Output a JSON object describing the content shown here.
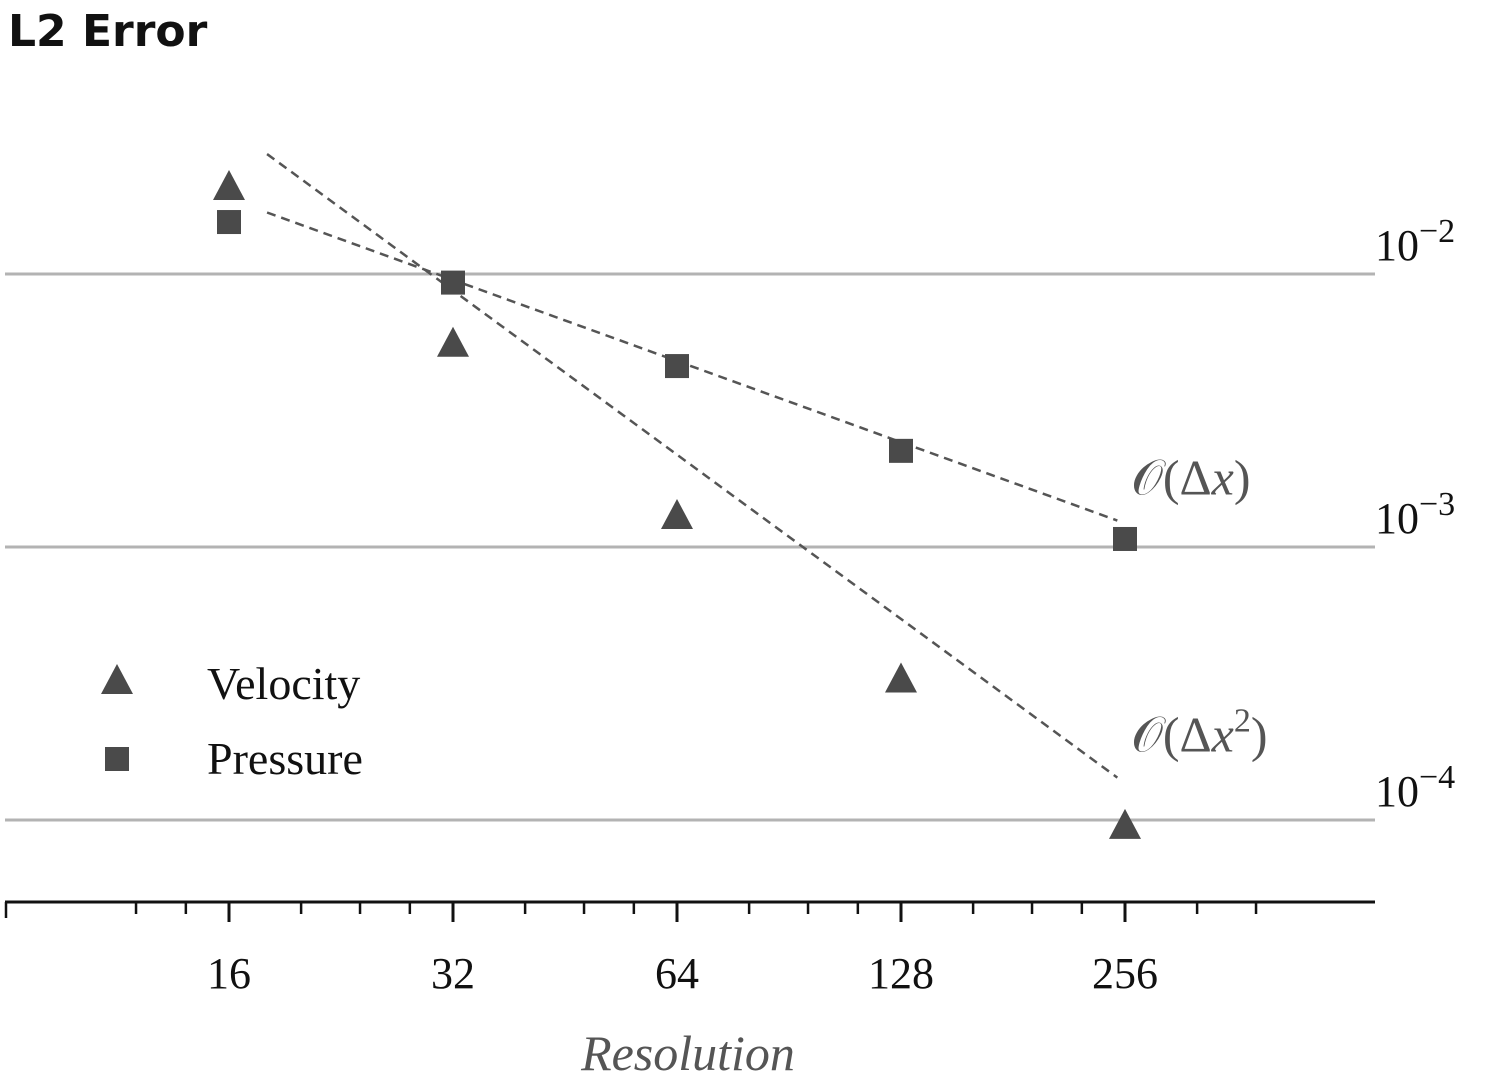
{
  "chart_data": {
    "type": "scatter",
    "title": "L2 Error",
    "xlabel": "Resolution",
    "ylabel": "",
    "x_scale": "log2",
    "y_scale": "log10",
    "xlim": [
      11,
      400
    ],
    "ylim": [
      6e-05,
      0.045
    ],
    "x_ticks": [
      16,
      32,
      64,
      128,
      256
    ],
    "x_tick_labels": [
      "16",
      "32",
      "64",
      "128",
      "256"
    ],
    "y_ticks": [
      0.01,
      0.001,
      0.0001
    ],
    "y_tick_labels": [
      {
        "base": "10",
        "exp": "−2"
      },
      {
        "base": "10",
        "exp": "−3"
      },
      {
        "base": "10",
        "exp": "−4"
      }
    ],
    "grid": "horizontal",
    "legend_position": "bottom-left",
    "series": [
      {
        "name": "Velocity",
        "marker": "triangle",
        "color": "#4a4a4a",
        "x": [
          16,
          32,
          64,
          128,
          256
        ],
        "y": [
          0.021,
          0.0056,
          0.00131,
          0.00033,
          9.6e-05
        ]
      },
      {
        "name": "Pressure",
        "marker": "square",
        "color": "#4a4a4a",
        "x": [
          16,
          32,
          64,
          128,
          256
        ],
        "y": [
          0.0155,
          0.0093,
          0.0046,
          0.00225,
          0.00107
        ]
      }
    ],
    "reference_lines": [
      {
        "label_prefix": "𝒪(Δ",
        "label_var": "x",
        "label_power": "",
        "label_suffix": ")",
        "style": "dashed",
        "color": "#555555",
        "x": [
          18,
          250
        ],
        "y": [
          0.0168,
          0.00125
        ]
      },
      {
        "label_prefix": "𝒪(Δ",
        "label_var": "x",
        "label_power": "2",
        "label_suffix": ")",
        "style": "dashed",
        "color": "#555555",
        "x": [
          18,
          250
        ],
        "y": [
          0.0275,
          0.000143
        ]
      }
    ],
    "colors": {
      "marker": "#4a4a4a",
      "grid": "#b3b3b3",
      "axis": "#111111",
      "reference": "#555555"
    }
  }
}
